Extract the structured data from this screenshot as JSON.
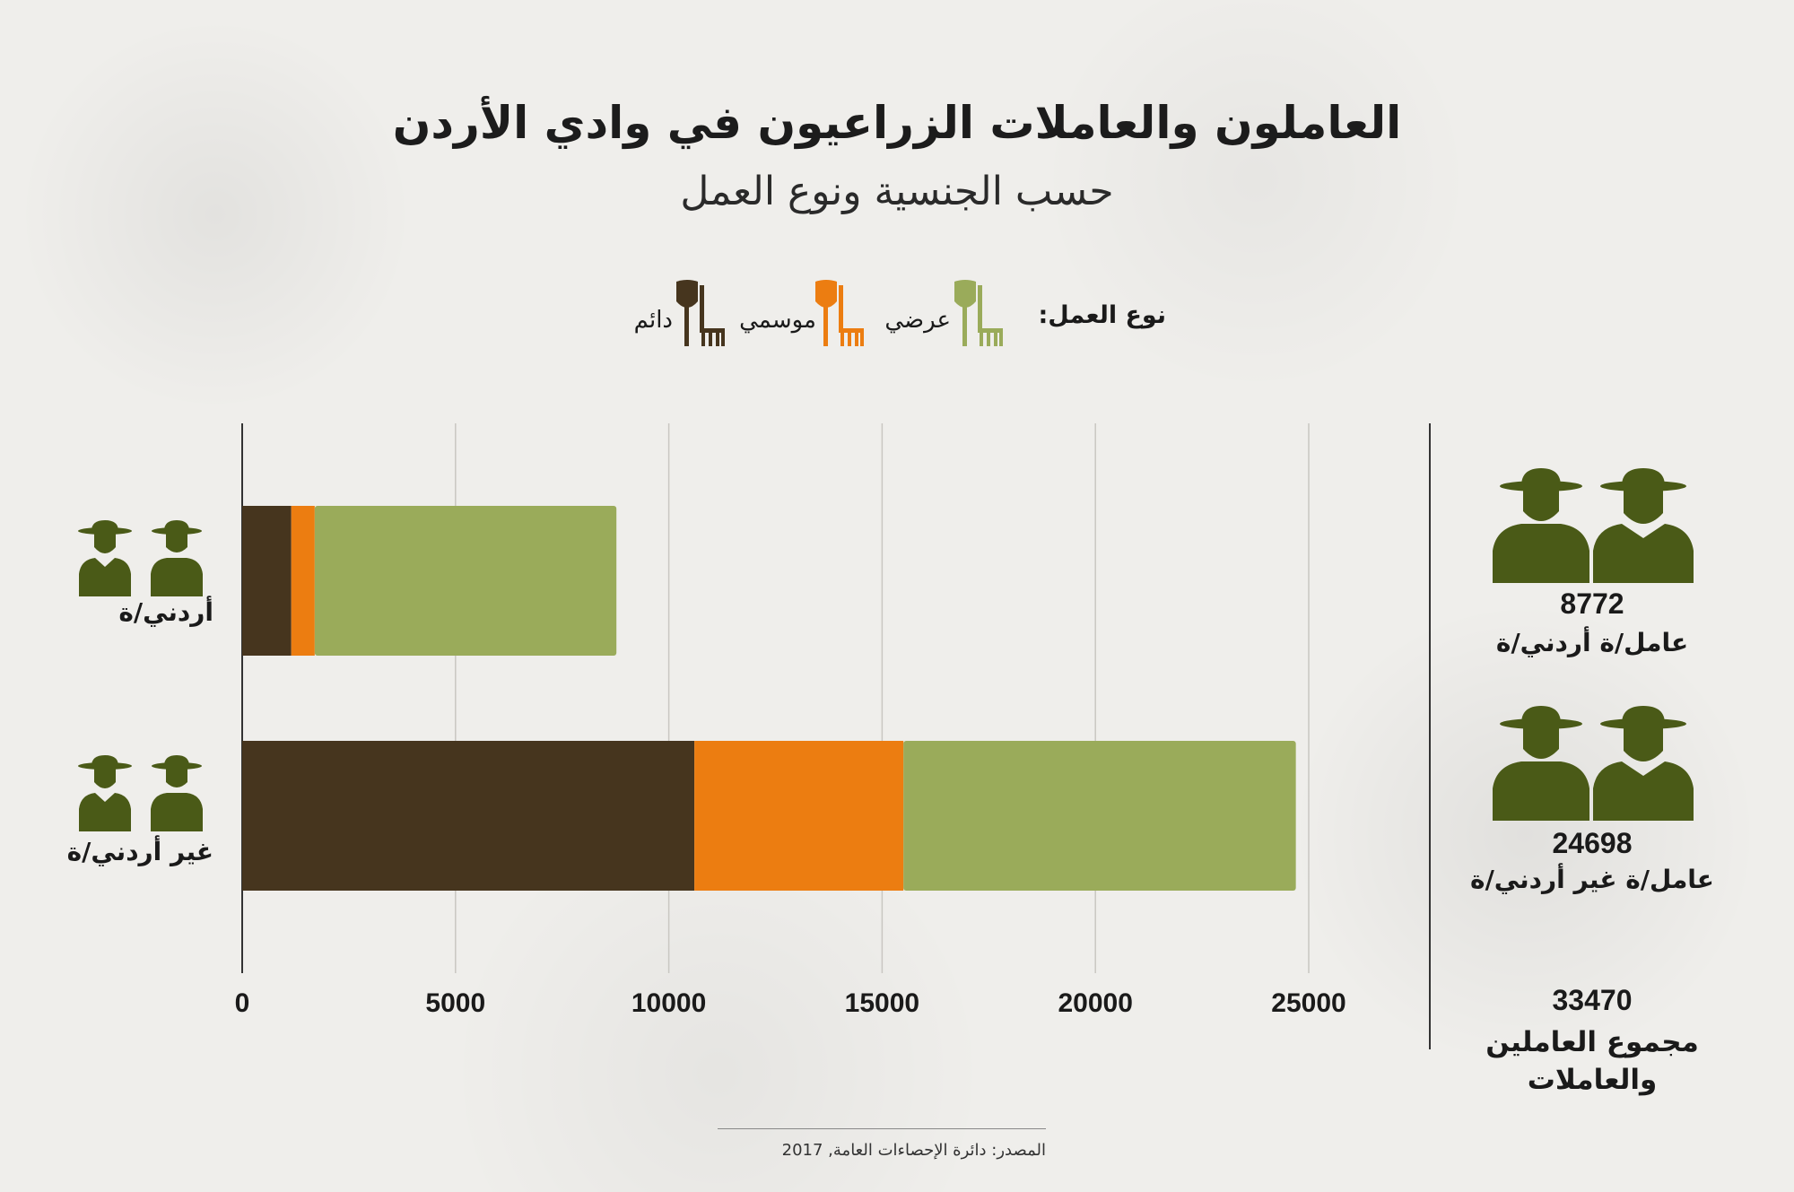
{
  "header": {
    "title": "العاملون والعاملات الزراعيون في وادي الأردن",
    "subtitle": "حسب الجنسية ونوع العمل"
  },
  "legend": {
    "label": "نوع العمل:",
    "items": [
      {
        "label": "عرضي",
        "color": "#9aab5a",
        "icon": "shovel-rake-icon"
      },
      {
        "label": "موسمي",
        "color": "#ec7d11",
        "icon": "shovel-rake-icon"
      },
      {
        "label": "دائم",
        "color": "#46351e",
        "icon": "shovel-rake-icon"
      }
    ]
  },
  "chart_data": {
    "type": "bar",
    "orientation": "horizontal",
    "stacked": true,
    "categories": [
      "أردني/ة",
      "غير أردني/ة"
    ],
    "series": [
      {
        "name": "دائم",
        "color": "#46351e",
        "values": [
          1150,
          10600
        ]
      },
      {
        "name": "موسمي",
        "color": "#ec7d11",
        "values": [
          550,
          4900
        ]
      },
      {
        "name": "عرضي",
        "color": "#9aab5a",
        "values": [
          7072,
          9198
        ]
      }
    ],
    "xlim": [
      0,
      25000
    ],
    "xticks": [
      0,
      5000,
      10000,
      15000,
      20000,
      25000
    ],
    "grid": true
  },
  "stats": {
    "jordanian": {
      "value": "8772",
      "label": "عامل/ة أردني/ة",
      "icon": "farmers-icon"
    },
    "non_jordanian": {
      "value": "24698",
      "label": "عامل/ة غير أردني/ة",
      "icon": "farmers-icon"
    },
    "total": {
      "value": "33470",
      "label_line1": "مجموع العاملين",
      "label_line2": "والعاملات"
    }
  },
  "source": "المصدر: دائرة الإحصاءات العامة, 2017",
  "icon_color": "#4a5a17"
}
